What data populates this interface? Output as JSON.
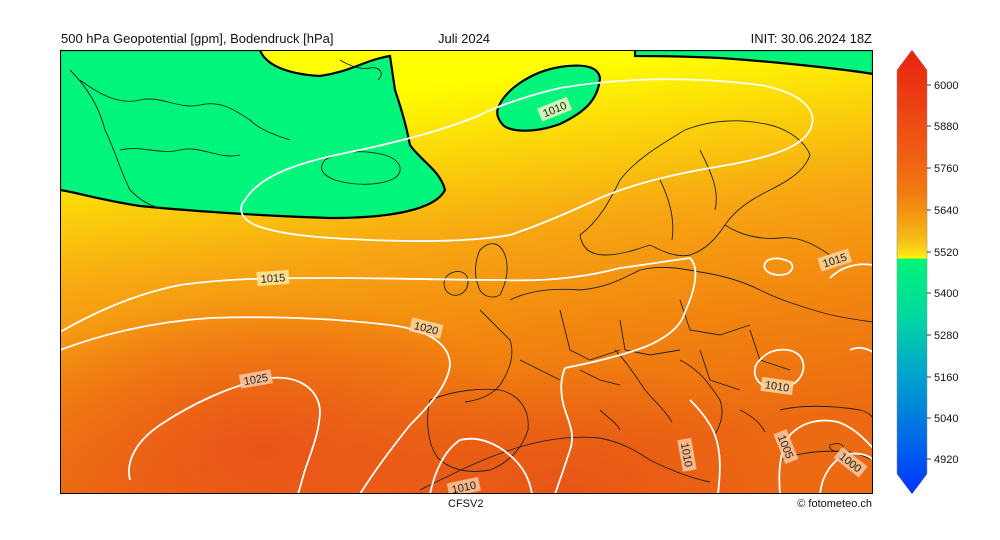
{
  "header": {
    "left": "500 hPa Geopotential [gpm], Bodendruck [hPa]",
    "center": "Juli 2024",
    "right": "INIT: 30.06.2024 18Z"
  },
  "footer": {
    "model": "CFSV2",
    "credit": "© fotometeo.ch"
  },
  "colorbar": {
    "ticks": [
      "6000",
      "5880",
      "5760",
      "5640",
      "5520",
      "5400",
      "5280",
      "5160",
      "5040",
      "4920"
    ],
    "colors": {
      "top": "#e8220f",
      "orange": "#f07a10",
      "yellow": "#ffff00",
      "green": "#00f57a",
      "blue": "#0033ff"
    }
  },
  "map": {
    "isobar_labels": [
      "1010",
      "1015",
      "1020",
      "1025",
      "1015",
      "1010",
      "1010",
      "1005",
      "1000",
      "1010"
    ],
    "colors": {
      "geopotential_low": "#00f57a",
      "geopotential_mid": "#ffff00",
      "geopotential_high": "#e8501a",
      "isobar": "#ffffff",
      "coastline": "#222222"
    }
  }
}
